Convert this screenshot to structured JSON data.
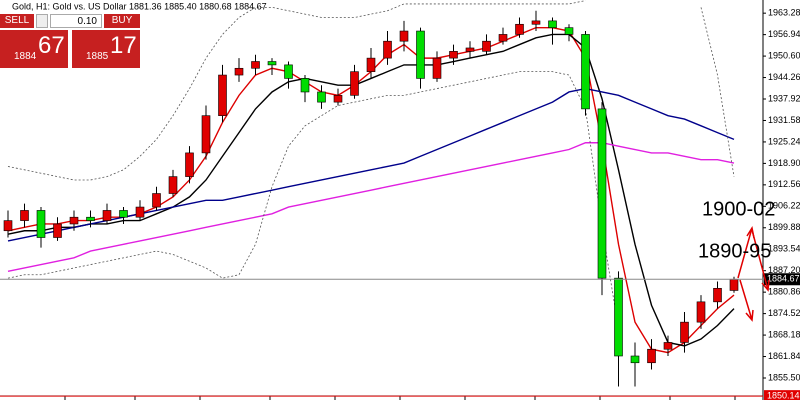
{
  "header": {
    "symbol_line": "Gold, H1:  Gold vs. US Dollar  1881.36 1885.40 1880.68 1884.67"
  },
  "trade_panel": {
    "sell_label": "SELL",
    "buy_label": "BUY",
    "lot": "0.10",
    "sell_price_small": "1884",
    "sell_price_big": "67",
    "buy_price_small": "1885",
    "buy_price_big": "17"
  },
  "chart_data": {
    "type": "candlestick",
    "ylim": [
      1849.0,
      1967.17
    ],
    "yticks": [
      1963.28,
      1956.94,
      {
        "value": 1950.6,
        "label": "1950.60"
      },
      1944.26,
      1937.92,
      1931.58,
      1925.24,
      {
        "value": 1918.9,
        "label": "1918.90"
      },
      1912.56,
      1906.22,
      1899.88,
      1893.54,
      {
        "value": 1887.2,
        "label": "1887.20"
      },
      1880.86,
      1874.52,
      1868.18,
      1861.84,
      {
        "value": 1855.5,
        "label": "1855.50"
      }
    ],
    "bull_color": "#e00000",
    "bear_color": "#00dd00",
    "candles": [
      [
        1899,
        1905,
        1897,
        1902
      ],
      [
        1902,
        1907,
        1900,
        1905
      ],
      [
        1905,
        1906,
        1894,
        1897
      ],
      [
        1897,
        1903,
        1896,
        1901
      ],
      [
        1901,
        1905,
        1899,
        1903
      ],
      [
        1903,
        1905,
        1900,
        1902
      ],
      [
        1902,
        1907,
        1901,
        1905
      ],
      [
        1905,
        1906,
        1901,
        1903
      ],
      [
        1903,
        1908,
        1902,
        1906
      ],
      [
        1906,
        1912,
        1905,
        1910
      ],
      [
        1910,
        1917,
        1909,
        1915
      ],
      [
        1915,
        1924,
        1913,
        1922
      ],
      [
        1922,
        1936,
        1920,
        1933
      ],
      [
        1933,
        1948,
        1931,
        1945
      ],
      [
        1945,
        1950,
        1943,
        1947
      ],
      [
        1947,
        1951,
        1945,
        1949
      ],
      [
        1949,
        1950,
        1945,
        1948
      ],
      [
        1948,
        1949,
        1941,
        1944
      ],
      [
        1944,
        1945,
        1937,
        1940
      ],
      [
        1940,
        1942,
        1935,
        1937
      ],
      [
        1937,
        1941,
        1936,
        1939
      ],
      [
        1939,
        1948,
        1938,
        1946
      ],
      [
        1946,
        1953,
        1944,
        1950
      ],
      [
        1950,
        1958,
        1948,
        1955
      ],
      [
        1955,
        1961,
        1952,
        1958
      ],
      [
        1958,
        1959,
        1941,
        1944
      ],
      [
        1944,
        1952,
        1943,
        1950
      ],
      [
        1950,
        1954,
        1948,
        1952
      ],
      [
        1952,
        1955,
        1950,
        1953
      ],
      [
        1952,
        1957,
        1951,
        1955
      ],
      [
        1955,
        1959,
        1954,
        1957
      ],
      [
        1957,
        1962,
        1956,
        1960
      ],
      [
        1960,
        1964,
        1958,
        1961
      ],
      [
        1961,
        1962,
        1954,
        1959
      ],
      [
        1959,
        1960,
        1955,
        1957
      ],
      [
        1957,
        1958,
        1933,
        1935
      ],
      [
        1935,
        1937,
        1880,
        1885
      ],
      [
        1885,
        1887,
        1853,
        1862
      ],
      [
        1862,
        1866,
        1853,
        1860
      ],
      [
        1860,
        1867,
        1858,
        1864
      ],
      [
        1864,
        1868,
        1862,
        1866
      ],
      [
        1866,
        1875,
        1863,
        1872
      ],
      [
        1872,
        1880,
        1870,
        1878
      ],
      [
        1878,
        1884,
        1876,
        1882
      ],
      [
        1881.36,
        1885.4,
        1880.68,
        1884.67
      ]
    ],
    "series": [
      {
        "color": "#dd0000",
        "dash": false,
        "values": [
          1899,
          1900,
          1901,
          1901,
          1902,
          1902,
          1903,
          1903,
          1904,
          1906,
          1909,
          1914,
          1921,
          1931,
          1939,
          1945,
          1947,
          1946,
          1943,
          1940,
          1939,
          1942,
          1946,
          1951,
          1954,
          1950,
          1950,
          1951,
          1952,
          1953,
          1955,
          1957,
          1959,
          1959,
          1958,
          1950,
          1925,
          1895,
          1872,
          1864,
          1863,
          1866,
          1871,
          1876,
          1880
        ]
      },
      {
        "color": "#000000",
        "dash": false,
        "values": [
          1898,
          1899,
          1899,
          1900,
          1900,
          1901,
          1901,
          1902,
          1902,
          1904,
          1906,
          1909,
          1914,
          1921,
          1928,
          1935,
          1940,
          1943,
          1944,
          1943,
          1942,
          1942,
          1944,
          1946,
          1948,
          1948,
          1948,
          1949,
          1950,
          1951,
          1952,
          1954,
          1956,
          1957,
          1957,
          1953,
          1938,
          1917,
          1895,
          1877,
          1866,
          1865,
          1867,
          1871,
          1876
        ]
      },
      {
        "color": "#00008b",
        "dash": false,
        "values": [
          1896,
          1897,
          1898,
          1899,
          1900,
          1901,
          1902,
          1903,
          1904,
          1905,
          1906,
          1907,
          1908,
          1908,
          1909,
          1910,
          1911,
          1912,
          1913,
          1914,
          1915,
          1916,
          1917,
          1918,
          1919,
          1921,
          1923,
          1925,
          1927,
          1929,
          1931,
          1933,
          1935,
          1937,
          1940,
          1941,
          1940,
          1939,
          1937,
          1935,
          1933,
          1932,
          1930,
          1928,
          1926
        ]
      },
      {
        "color": "#e020e0",
        "dash": false,
        "values": [
          1887,
          1888,
          1889,
          1890,
          1891,
          1893,
          1894,
          1895,
          1896,
          1897,
          1898,
          1899,
          1900,
          1901,
          1902,
          1903,
          1904,
          1906,
          1907,
          1908,
          1909,
          1910,
          1911,
          1912,
          1913,
          1914,
          1915,
          1916,
          1917,
          1918,
          1919,
          1920,
          1921,
          1922,
          1923,
          1925,
          1925,
          1924,
          1923,
          1922,
          1922,
          1921,
          1920,
          1920,
          1919
        ]
      },
      {
        "color": "#555555",
        "dash": true,
        "values": [
          1918,
          1917,
          1916,
          1915,
          1914,
          1914,
          1915,
          1917,
          1921,
          1926,
          1933,
          1941,
          1950,
          1957,
          1962,
          1965,
          1965,
          1964,
          1963,
          1962,
          1962,
          1962,
          1963,
          1964,
          1966,
          1966,
          1966,
          1966,
          1966,
          1966,
          1966,
          1966,
          1966,
          1966,
          1966,
          1967,
          null,
          null,
          null,
          null,
          null,
          null,
          1965,
          1945,
          1915
        ]
      },
      {
        "color": "#555555",
        "dash": true,
        "values": [
          1885,
          1886,
          1886,
          1887,
          1888,
          1889,
          1890,
          1891,
          1892,
          1893,
          1892,
          1890,
          1888,
          1885,
          1886,
          1895,
          1912,
          1924,
          1930,
          1933,
          1936,
          1937,
          1938,
          1939,
          1939,
          1940,
          1941,
          1942,
          1943,
          1944,
          1945,
          1946,
          1946,
          1946,
          1945,
          1935,
          1900,
          1870,
          null,
          null,
          null,
          null,
          null,
          null,
          null
        ]
      }
    ],
    "current_price": 1884.67,
    "low_line": 1850.14,
    "annotations": [
      "1900-02",
      "1890-95"
    ]
  }
}
